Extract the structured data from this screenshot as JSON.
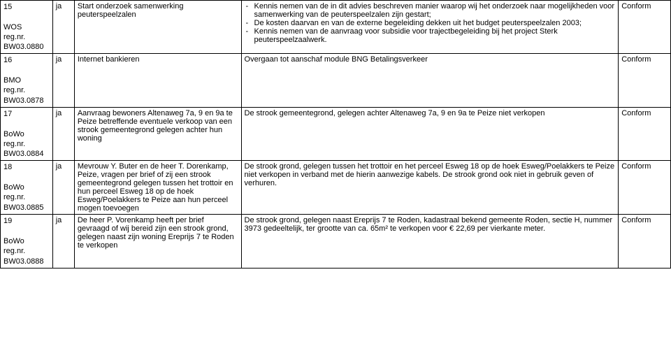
{
  "rows": [
    {
      "id_num": "15",
      "id_dept": "WOS",
      "id_reg": "reg.nr.",
      "id_code": "BW03.0880",
      "ja": "ja",
      "subject": "Start onderzoek samenwerking peuterspeelzalen",
      "desc_list": [
        "Kennis nemen van de in dit advies beschreven manier waarop wij het onderzoek naar mogelijkheden voor samenwerking van de peuterspeelzalen zijn gestart;",
        "De kosten daarvan en van de externe begeleiding dekken uit het budget peuterspeelzalen 2003;",
        "Kennis nemen van de aanvraag voor subsidie voor trajectbegeleiding bij het project Sterk peuterspeelzaalwerk."
      ],
      "status": "Conform"
    },
    {
      "id_num": "16",
      "id_dept": "BMO",
      "id_reg": "reg.nr.",
      "id_code": "BW03.0878",
      "ja": "ja",
      "subject": "Internet bankieren",
      "desc_plain": "Overgaan tot aanschaf module BNG Betalingsverkeer",
      "status": "Conform"
    },
    {
      "id_num": "17",
      "id_dept": "BoWo",
      "id_reg": "reg.nr.",
      "id_code": "BW03.0884",
      "ja": "ja",
      "subject": "Aanvraag bewoners Altenaweg 7a, 9 en 9a te Peize betreffende eventuele verkoop van een strook gemeentegrond gelegen achter hun woning",
      "desc_plain": "De strook gemeentegrond, gelegen achter Altenaweg 7a, 9 en 9a te Peize niet verkopen",
      "status": "Conform"
    },
    {
      "id_num": "18",
      "id_dept": "BoWo",
      "id_reg": "reg.nr.",
      "id_code": "BW03.0885",
      "ja": "ja",
      "subject": "Mevrouw Y. Buter en de heer T. Dorenkamp, Peize, vragen per brief of zij een strook gemeentegrond gelegen tussen het trottoir en hun perceel Esweg 18 op de hoek Esweg/Poelakkers te Peize aan hun perceel mogen toevoegen",
      "desc_plain": "De strook grond, gelegen tussen het trottoir en het perceel Esweg 18 op de hoek Esweg/Poelakkers te Peize niet verkopen in verband met de hierin aanwezige kabels. De strook grond ook niet in gebruik geven of verhuren.",
      "status": "Conform"
    },
    {
      "id_num": "19",
      "id_dept": "BoWo",
      "id_reg": "reg.nr.",
      "id_code": "BW03.0888",
      "ja": "ja",
      "subject": "De heer P. Vorenkamp heeft per brief gevraagd of wij bereid zijn een strook grond, gelegen naast zijn woning Ereprijs 7 te Roden te verkopen",
      "desc_plain": "De strook grond, gelegen naast Ereprijs 7 te Roden, kadastraal bekend gemeente Roden, sectie H, nummer 3973 gedeeltelijk, ter grootte van ca. 65m² te verkopen voor € 22,69 per vierkante meter.",
      "status": "Conform"
    }
  ]
}
